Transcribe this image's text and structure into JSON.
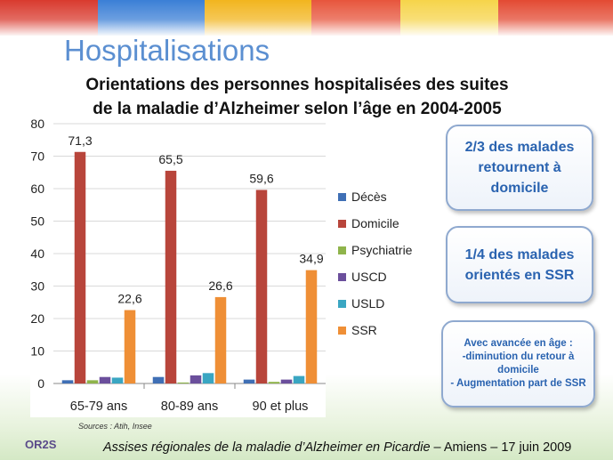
{
  "slide_title": "Hospitalisations",
  "chart_title_line1": "Orientations des personnes hospitalisées des suites",
  "chart_title_line2": "de la maladie d’Alzheimer selon l’âge en 2004-2005",
  "chart_data": {
    "type": "bar",
    "categories": [
      "65-79 ans",
      "80-89 ans",
      "90 et plus"
    ],
    "ylim": [
      0,
      80
    ],
    "yticks": [
      0,
      10,
      20,
      30,
      40,
      50,
      60,
      70,
      80
    ],
    "grid": true,
    "legend_position": "right",
    "series": [
      {
        "name": "Décès",
        "color": "#3f6fb5",
        "values": [
          1.0,
          2.0,
          1.2
        ]
      },
      {
        "name": "Domicile",
        "color": "#b8453b",
        "values": [
          71.3,
          65.5,
          59.6
        ],
        "labels": [
          "71,3",
          "65,5",
          "59,6"
        ]
      },
      {
        "name": "Psychiatrie",
        "color": "#8fb44b",
        "values": [
          1.0,
          0.3,
          0.5
        ]
      },
      {
        "name": "USCD",
        "color": "#6b4f9c",
        "values": [
          2.0,
          2.5,
          1.2
        ]
      },
      {
        "name": "USLD",
        "color": "#3aa6c2",
        "values": [
          1.8,
          3.2,
          2.3
        ]
      },
      {
        "name": "SSR",
        "color": "#ef8f36",
        "values": [
          22.6,
          26.6,
          34.9
        ],
        "labels": [
          "22,6",
          "26,6",
          "34,9"
        ]
      }
    ]
  },
  "callouts": {
    "c1": "2/3 des malades retournent à domicile",
    "c2": "1/4 des malades orientés en SSR",
    "c3": "Avec avancée en âge :\n-diminution du retour à domicile\n- Augmentation part de SSR"
  },
  "source": "Sources : Atih, Insee",
  "footer": {
    "logo": "OR2S",
    "italic": "Assises régionales de la maladie d’Alzheimer en Picardie",
    "rest": " – Amiens – 17 juin 2009"
  }
}
